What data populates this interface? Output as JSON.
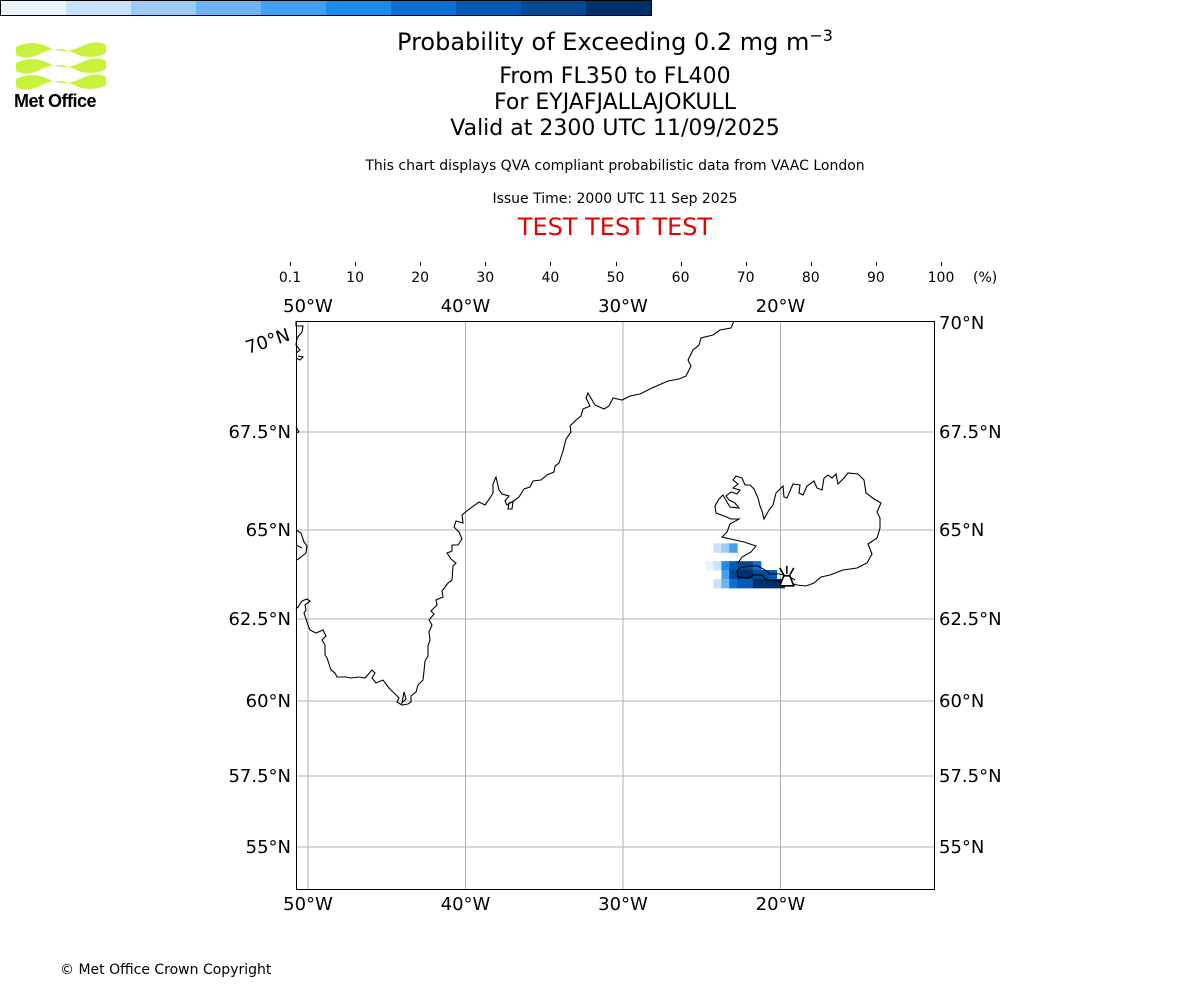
{
  "header": {
    "title_prefix": "Probability of Exceeding 0.2 mg m",
    "title_exponent": "−3",
    "flight_levels": "From FL350 to FL400",
    "volcano": "For EYJAFJALLAJOKULL",
    "valid_time": "Valid at 2300 UTC 11/09/2025",
    "description": "This chart displays QVA compliant probabilistic data from VAAC London",
    "issue_time": "Issue Time: 2000 UTC 11 Sep 2025",
    "test_banner": "TEST TEST TEST"
  },
  "logo": {
    "text": "Met Office",
    "color": "#c8f23c",
    "icon": "met-office-waves-logo"
  },
  "colorbar": {
    "ticks": [
      "0.1",
      "10",
      "20",
      "30",
      "40",
      "50",
      "60",
      "70",
      "80",
      "90",
      "100"
    ],
    "unit": "(%)",
    "colors": [
      "#eaf4fd",
      "#c7e2fa",
      "#9dcbf6",
      "#70b3f2",
      "#44a0f0",
      "#1f8be8",
      "#0b6fd2",
      "#005bb7",
      "#004a93",
      "#00306b"
    ]
  },
  "map": {
    "projection": "plate-carree-like",
    "extent": {
      "lon_min": -51,
      "lon_max": -10,
      "lat_min": 54,
      "lat_max": 70
    },
    "gridlines": true,
    "lon_labels": [
      "50°W",
      "40°W",
      "30°W",
      "20°W"
    ],
    "lat_labels": [
      "70°N",
      "67.5°N",
      "65°N",
      "62.5°N",
      "60°N",
      "57.5°N",
      "55°N"
    ],
    "volcano_marker": {
      "name": "volcano-icon",
      "lon": -19.6,
      "lat": 63.6
    }
  },
  "chart_data": {
    "type": "heatmap",
    "title": "Probability of Exceeding 0.2 mg m−3",
    "value_unit": "%",
    "cells": [
      {
        "lon": -24.5,
        "lat": 64.0,
        "value": 5
      },
      {
        "lon": -24.0,
        "lat": 64.5,
        "value": 10
      },
      {
        "lon": -24.0,
        "lat": 64.0,
        "value": 15
      },
      {
        "lon": -23.5,
        "lat": 64.5,
        "value": 25
      },
      {
        "lon": -23.0,
        "lat": 64.5,
        "value": 45
      },
      {
        "lon": -23.5,
        "lat": 64.0,
        "value": 55
      },
      {
        "lon": -23.0,
        "lat": 64.0,
        "value": 75
      },
      {
        "lon": -22.5,
        "lat": 64.0,
        "value": 85
      },
      {
        "lon": -22.0,
        "lat": 64.0,
        "value": 80
      },
      {
        "lon": -21.5,
        "lat": 64.0,
        "value": 65
      },
      {
        "lon": -23.5,
        "lat": 63.75,
        "value": 45
      },
      {
        "lon": -23.0,
        "lat": 63.75,
        "value": 80
      },
      {
        "lon": -22.5,
        "lat": 63.75,
        "value": 90
      },
      {
        "lon": -22.0,
        "lat": 63.75,
        "value": 90
      },
      {
        "lon": -21.5,
        "lat": 63.75,
        "value": 85
      },
      {
        "lon": -21.0,
        "lat": 63.75,
        "value": 80
      },
      {
        "lon": -20.5,
        "lat": 63.75,
        "value": 70
      },
      {
        "lon": -24.0,
        "lat": 63.5,
        "value": 15
      },
      {
        "lon": -23.5,
        "lat": 63.5,
        "value": 35
      },
      {
        "lon": -23.0,
        "lat": 63.5,
        "value": 60
      },
      {
        "lon": -22.5,
        "lat": 63.5,
        "value": 70
      },
      {
        "lon": -22.0,
        "lat": 63.5,
        "value": 75
      },
      {
        "lon": -21.5,
        "lat": 63.5,
        "value": 90
      },
      {
        "lon": -21.0,
        "lat": 63.5,
        "value": 95
      },
      {
        "lon": -20.5,
        "lat": 63.5,
        "value": 90
      },
      {
        "lon": -20.0,
        "lat": 63.5,
        "value": 95
      }
    ]
  },
  "footer": {
    "copyright": "© Met Office Crown Copyright"
  }
}
